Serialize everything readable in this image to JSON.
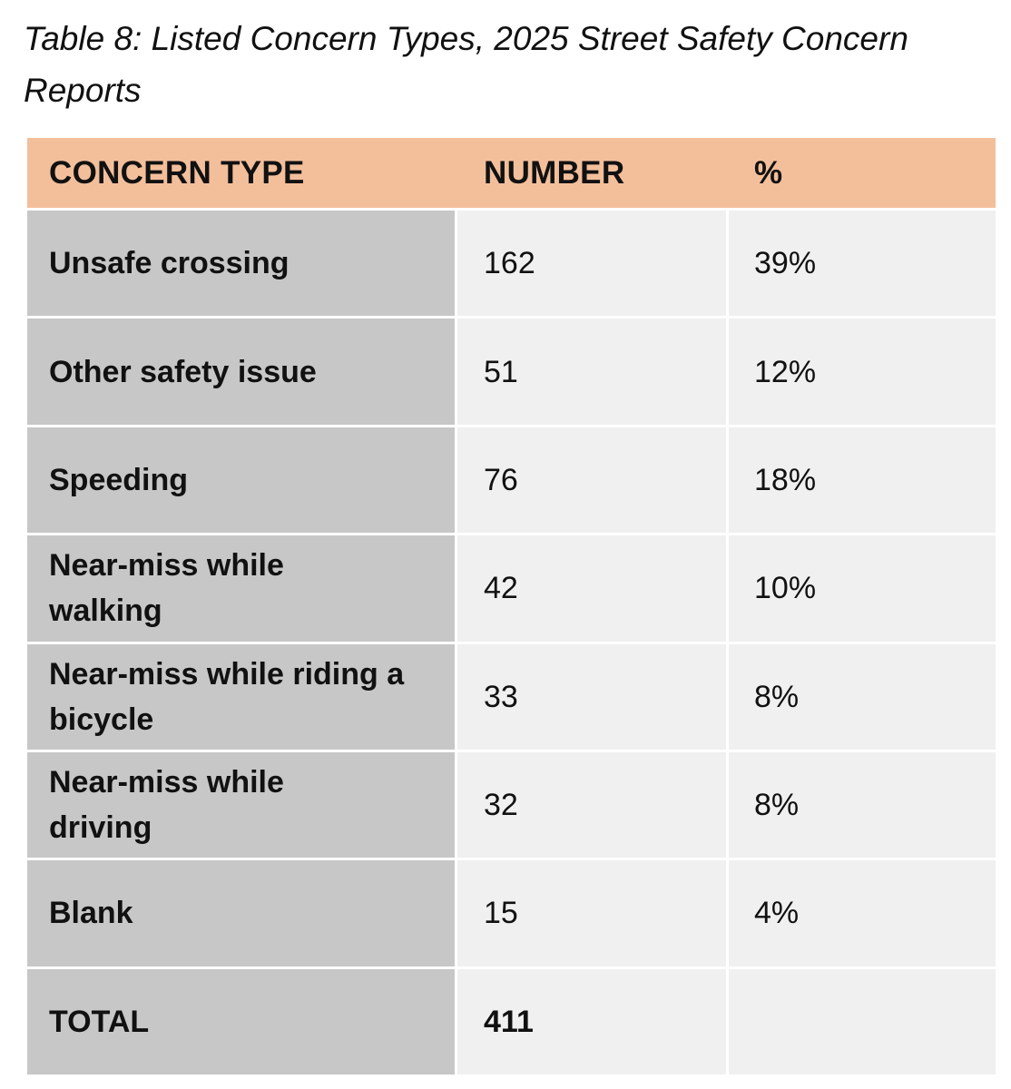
{
  "caption": {
    "line1": "Table 8: Listed Concern Types, 2025 Street Safety Concern",
    "line2": "Reports"
  },
  "table": {
    "headers": [
      "CONCERN TYPE",
      "NUMBER",
      "%"
    ],
    "rows": [
      {
        "type": "Unsafe crossing",
        "number": "162",
        "percent": "39%"
      },
      {
        "type": "Other safety issue",
        "number": "51",
        "percent": "12%"
      },
      {
        "type": "Speeding",
        "number": "76",
        "percent": "18%"
      },
      {
        "type": "Near-miss while walking",
        "number": "42",
        "percent": "10%"
      },
      {
        "type": "Near-miss while riding a bicycle",
        "number": "33",
        "percent": "8%"
      },
      {
        "type": "Near-miss while driving",
        "number": "32",
        "percent": "8%"
      },
      {
        "type": "Blank",
        "number": "15",
        "percent": "4%"
      }
    ],
    "total": {
      "type": "TOTAL",
      "number": "411",
      "percent": ""
    }
  },
  "colors": {
    "header": "#f3bf9b",
    "type_column": "#c7c7c7",
    "value_columns": "#f0f0f0"
  }
}
